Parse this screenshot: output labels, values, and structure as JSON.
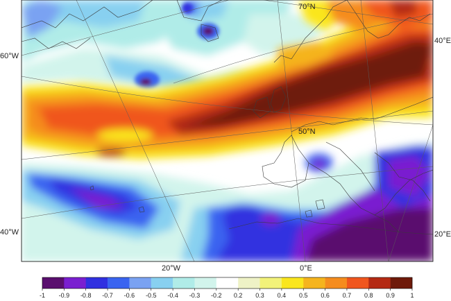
{
  "map": {
    "lat_labels": [
      {
        "id": "lat-70n",
        "text": "70°N"
      },
      {
        "id": "lat-60w-label",
        "text": "60°W"
      },
      {
        "id": "lat-50n",
        "text": "50°N"
      },
      {
        "id": "lon-40w",
        "text": "40°W"
      },
      {
        "id": "lon-20w",
        "text": "20°W"
      },
      {
        "id": "lon-0e",
        "text": "0°E"
      },
      {
        "id": "lon-40e",
        "text": "40°E"
      },
      {
        "id": "lon-20e",
        "text": "20°E"
      }
    ]
  },
  "colorbar": {
    "colors": [
      "#5a0f6e",
      "#7a1fd0",
      "#3030e0",
      "#3a64f0",
      "#7aa2f2",
      "#88d0f0",
      "#b0ece8",
      "#d2f4ec",
      "#ffffff",
      "#eef2c6",
      "#f2f27a",
      "#fae61e",
      "#f5b41e",
      "#f58c1e",
      "#f0561e",
      "#b42a14",
      "#6e1a0a"
    ],
    "ticks": [
      "-1",
      "-0.9",
      "-0.8",
      "-0.7",
      "-0.6",
      "-0.5",
      "-0.4",
      "-0.3",
      "-0.2",
      "0.2",
      "0.3",
      "0.4",
      "0.5",
      "0.6",
      "0.7",
      "0.8",
      "0.9",
      "1"
    ]
  }
}
